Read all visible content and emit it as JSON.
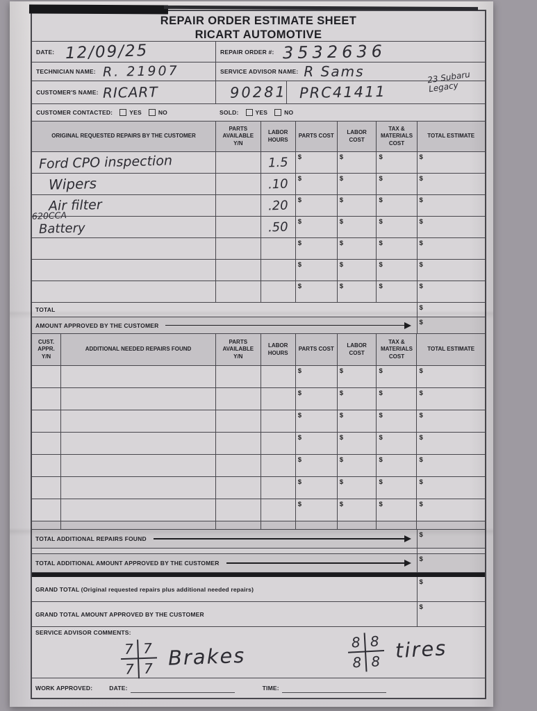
{
  "form": {
    "title_line1": "REPAIR ORDER ESTIMATE SHEET",
    "title_line2": "RICART AUTOMOTIVE"
  },
  "info": {
    "date_label": "DATE:",
    "date_value": "12/09/25",
    "repair_order_label": "REPAIR ORDER #:",
    "repair_order_value": "3532636",
    "technician_label": "TECHNICIAN NAME:",
    "technician_value": "R. 21907",
    "advisor_label": "SERVICE ADVISOR NAME:",
    "advisor_value": "R Sams",
    "customer_label": "CUSTOMER'S NAME:",
    "customer_value": "RICART",
    "stock_value": "90281",
    "tag_value": "PRC41411",
    "vehicle_value": "23 Subaru Legacy",
    "contacted_label": "CUSTOMER CONTACTED:",
    "sold_label": "SOLD:",
    "yes_label": "YES",
    "no_label": "NO"
  },
  "currency": "$",
  "original_table": {
    "headers": [
      "ORIGINAL REQUESTED REPAIRS BY THE CUSTOMER",
      "PARTS AVAILABLE Y/N",
      "LABOR HOURS",
      "PARTS COST",
      "LABOR COST",
      "TAX & MATERIALS COST",
      "TOTAL ESTIMATE"
    ],
    "rows": [
      {
        "description": "Ford CPO inspection",
        "note": "",
        "labor_hours": "1.5"
      },
      {
        "description": "Wipers",
        "note": "",
        "labor_hours": ".10"
      },
      {
        "description": "Air filter",
        "note": "",
        "labor_hours": ".20"
      },
      {
        "description": "Battery",
        "note": "620CCA",
        "labor_hours": ".50"
      },
      {
        "description": "",
        "note": "",
        "labor_hours": ""
      },
      {
        "description": "",
        "note": "",
        "labor_hours": ""
      },
      {
        "description": "",
        "note": "",
        "labor_hours": ""
      }
    ],
    "total_label": "TOTAL",
    "amount_approved_label": "AMOUNT APPROVED BY THE CUSTOMER"
  },
  "additional_table": {
    "headers": [
      "CUST. APPR. Y/N",
      "ADDITIONAL NEEDED REPAIRS FOUND",
      "PARTS AVAILABLE Y/N",
      "LABOR HOURS",
      "PARTS COST",
      "LABOR COST",
      "TAX & MATERIALS COST",
      "TOTAL ESTIMATE"
    ],
    "rows": [
      {},
      {},
      {},
      {},
      {},
      {},
      {}
    ],
    "total_additional_label": "TOTAL ADDITIONAL REPAIRS FOUND",
    "total_approved_label": "TOTAL ADDITIONAL AMOUNT APPROVED BY THE CUSTOMER"
  },
  "grand": {
    "grand_total_label": "GRAND TOTAL (Original requested repairs plus additional needed repairs)",
    "grand_approved_label": "GRAND TOTAL AMOUNT APPROVED BY THE CUSTOMER"
  },
  "comments": {
    "label": "SERVICE ADVISOR COMMENTS:",
    "brakes": {
      "tl": "7",
      "tr": "7",
      "bl": "7",
      "br": "7",
      "caption": "Brakes"
    },
    "tires": {
      "tl": "8",
      "tr": "8",
      "bl": "8",
      "br": "8",
      "caption": "tires"
    }
  },
  "footer": {
    "work_approved_label": "WORK APPROVED:",
    "date_label": "DATE:",
    "time_label": "TIME:"
  }
}
